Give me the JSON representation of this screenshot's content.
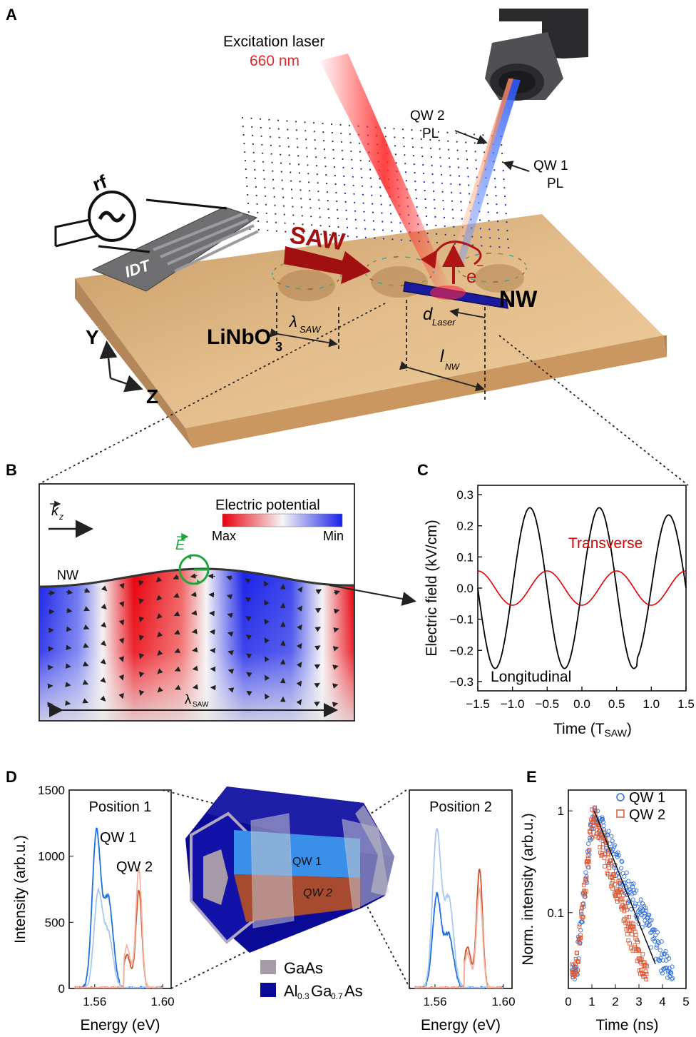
{
  "panel_labels": {
    "a": "A",
    "b": "B",
    "c": "C",
    "d": "D",
    "e": "E"
  },
  "panel_a": {
    "laser_title": "Excitation laser",
    "laser_wavelength": "660 nm",
    "qw2_pl_line1": "QW 2",
    "qw2_pl_line2": "PL",
    "qw1_pl_line1": "QW 1",
    "qw1_pl_line2": "PL",
    "rf": "rf",
    "idt": "IDT",
    "saw": "SAW",
    "nw": "NW",
    "electron": "e",
    "electron_sup": "−",
    "lambda": "λ",
    "lambda_sub": "SAW",
    "d": "d",
    "d_sub": "Laser",
    "l": "l",
    "l_sub": "NW",
    "substrate": "LiNbO",
    "substrate_sub": "3",
    "axis_y": "Y",
    "axis_z": "Z",
    "colors": {
      "substrate": "#d9b07a",
      "laser": "#ff2a2a",
      "nw": "#1a1a9e",
      "saw_arrow": "#b01515"
    }
  },
  "panel_b": {
    "k_label": "k",
    "k_sub": "z",
    "colorbar_title": "Electric potential",
    "max_label": "Max",
    "min_label": "Min",
    "e_label": "E",
    "nw_label": "NW",
    "lambda": "λ",
    "lambda_sub": "SAW",
    "colors": {
      "max": "#e8000b",
      "min": "#1a22e8",
      "e_vector": "#1ea63c"
    }
  },
  "panel_d": {
    "left_title": "Position 1",
    "right_title": "Position 2",
    "qw1": "QW 1",
    "qw2": "QW 2",
    "ylabel": "Intensity (arb.u.)",
    "xlabel": "Energy (eV)",
    "legend_gaas": "GaAs",
    "legend_algaas_1": "Al",
    "legend_algaas_sub1": "0.3",
    "legend_algaas_2": "Ga",
    "legend_algaas_sub2": "0.7",
    "legend_algaas_3": "As",
    "model_qw1": "QW 1",
    "model_qw2": "QW 2",
    "colors": {
      "gaas": "#a69aa8",
      "algaas": "#0a0a96",
      "qw1": "#3a8fe8",
      "qw2": "#c0502a"
    }
  },
  "chart_data": [
    {
      "type": "line",
      "id": "C",
      "xlabel": "Time (T",
      "xlabel_sub": "SAW",
      "xlabel_end": ")",
      "ylabel": "Electric field (kV/cm)",
      "xlim": [
        -1.5,
        1.5
      ],
      "ylim": [
        -0.33,
        0.33
      ],
      "xticks": [
        "−1.5",
        "−1.0",
        "−0.5",
        "0.0",
        "0.5",
        "1.0",
        "1.5"
      ],
      "yticks": [
        "0.3",
        "0.2",
        "0.1",
        "0.0",
        "−0.1",
        "−0.2",
        "−0.3"
      ],
      "annotations": [
        "Transverse",
        "Longitudinal"
      ],
      "series": [
        {
          "name": "Longitudinal",
          "color": "#000000",
          "period": 1.0,
          "peaks": [
            [
              -0.75,
              0.26
            ],
            [
              0.25,
              0.26
            ],
            [
              1.25,
              0.23
            ]
          ],
          "troughs": [
            [
              -1.25,
              -0.25
            ],
            [
              -0.25,
              -0.26
            ],
            [
              0.75,
              -0.265
            ]
          ]
        },
        {
          "name": "Transverse",
          "color": "#e00000",
          "amplitude": 0.055,
          "period": 1.0,
          "minima_at": [
            -1.0,
            0.0,
            1.0
          ]
        }
      ]
    },
    {
      "type": "line",
      "id": "D-position-1",
      "title": "Position 1",
      "xlabel": "Energy (eV)",
      "ylabel": "Intensity (arb.u.)",
      "xlim": [
        1.545,
        1.605
      ],
      "ylim": [
        0,
        1500
      ],
      "xticks": [
        "1.56",
        "1.60"
      ],
      "yticks": [
        "0",
        "500",
        "1000",
        "1500"
      ],
      "series": [
        {
          "name": "QW 1",
          "color": "#1f6fe0",
          "peak_energy": 1.561,
          "peak_intensity": 1230
        },
        {
          "name": "QW 1 (no SAW)",
          "color": "#a9c8f0",
          "peak_energy": 1.562,
          "peak_intensity": 730
        },
        {
          "name": "QW 2",
          "color": "#d1532a",
          "peak_energy": 1.586,
          "peak_intensity": 740
        },
        {
          "name": "QW 2 (no SAW)",
          "color": "#f2b6a4",
          "peak_energy": 1.586,
          "peak_intensity": 900
        }
      ]
    },
    {
      "type": "line",
      "id": "D-position-2",
      "title": "Position 2",
      "xlabel": "Energy (eV)",
      "xlim": [
        1.545,
        1.605
      ],
      "ylim": [
        0,
        1500
      ],
      "xticks": [
        "1.56",
        "1.60"
      ],
      "series": [
        {
          "name": "QW 1",
          "color": "#1f6fe0",
          "peak_energy": 1.561,
          "peak_intensity": 730
        },
        {
          "name": "QW 1 (no SAW)",
          "color": "#a9c8f0",
          "peak_energy": 1.561,
          "peak_intensity": 1230
        },
        {
          "name": "QW 2",
          "color": "#d1532a",
          "peak_energy": 1.586,
          "peak_intensity": 900
        },
        {
          "name": "QW 2 (no SAW)",
          "color": "#f2b6a4",
          "peak_energy": 1.586,
          "peak_intensity": 740
        }
      ]
    },
    {
      "type": "scatter",
      "id": "E",
      "xlabel": "Time (ns)",
      "ylabel": "Norm. intensity (arb.u.)",
      "xlim": [
        0,
        5
      ],
      "ylim_log": [
        0.018,
        1.6
      ],
      "log_y": true,
      "xticks": [
        "0",
        "1",
        "2",
        "3",
        "4",
        "5"
      ],
      "yticks": [
        "1",
        "0.1"
      ],
      "legend": [
        "QW 1",
        "QW 2"
      ],
      "series": [
        {
          "name": "QW 1",
          "color": "#2f6fd8",
          "marker": "circle",
          "rise": 1.05,
          "decay_ns": 0.9
        },
        {
          "name": "QW 2",
          "color": "#d95a36",
          "marker": "square",
          "rise": 1.05,
          "decay_ns": 0.6
        }
      ],
      "fit": {
        "color": "#000000"
      }
    }
  ]
}
